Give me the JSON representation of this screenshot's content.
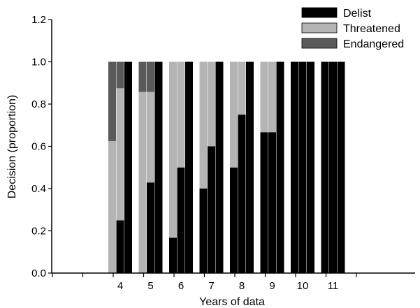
{
  "chart_data": {
    "type": "bar",
    "title": "",
    "xlabel": "Years of data",
    "ylabel": "Decision (proportion)",
    "ylim": [
      0,
      1.2
    ],
    "yticks": [
      "0.0",
      "0.2",
      "0.4",
      "0.6",
      "0.8",
      "1.0",
      "1.2"
    ],
    "categories": [
      "4",
      "5",
      "6",
      "7",
      "8",
      "9",
      "10",
      "11"
    ],
    "legend_position": "top-right",
    "series": [
      {
        "name": "Delist",
        "color": "#000000"
      },
      {
        "name": "Threatened",
        "color": "#b4b4b4"
      },
      {
        "name": "Endangered",
        "color": "#5a5a5a"
      }
    ],
    "groups": [
      {
        "category": "4",
        "bars": [
          {
            "Delist": 0,
            "Threatened": 0.625,
            "Endangered": 0.375
          },
          {
            "Delist": 0.25,
            "Threatened": 0.625,
            "Endangered": 0.125
          },
          {
            "Delist": 1.0,
            "Threatened": 0,
            "Endangered": 0
          }
        ]
      },
      {
        "category": "5",
        "bars": [
          {
            "Delist": 0,
            "Threatened": 0.857,
            "Endangered": 0.143
          },
          {
            "Delist": 0.429,
            "Threatened": 0.428,
            "Endangered": 0.143
          },
          {
            "Delist": 1.0,
            "Threatened": 0,
            "Endangered": 0
          }
        ]
      },
      {
        "category": "6",
        "bars": [
          {
            "Delist": 0.167,
            "Threatened": 0.833,
            "Endangered": 0
          },
          {
            "Delist": 0.5,
            "Threatened": 0.5,
            "Endangered": 0
          },
          {
            "Delist": 1.0,
            "Threatened": 0,
            "Endangered": 0
          }
        ]
      },
      {
        "category": "7",
        "bars": [
          {
            "Delist": 0.4,
            "Threatened": 0.6,
            "Endangered": 0
          },
          {
            "Delist": 0.6,
            "Threatened": 0.4,
            "Endangered": 0
          },
          {
            "Delist": 1.0,
            "Threatened": 0,
            "Endangered": 0
          }
        ]
      },
      {
        "category": "8",
        "bars": [
          {
            "Delist": 0.5,
            "Threatened": 0.5,
            "Endangered": 0
          },
          {
            "Delist": 0.75,
            "Threatened": 0.25,
            "Endangered": 0
          },
          {
            "Delist": 1.0,
            "Threatened": 0,
            "Endangered": 0
          }
        ]
      },
      {
        "category": "9",
        "bars": [
          {
            "Delist": 0.667,
            "Threatened": 0.333,
            "Endangered": 0
          },
          {
            "Delist": 0.667,
            "Threatened": 0.333,
            "Endangered": 0
          },
          {
            "Delist": 1.0,
            "Threatened": 0,
            "Endangered": 0
          }
        ]
      },
      {
        "category": "10",
        "bars": [
          {
            "Delist": 1.0,
            "Threatened": 0,
            "Endangered": 0
          },
          {
            "Delist": 1.0,
            "Threatened": 0,
            "Endangered": 0
          },
          {
            "Delist": 1.0,
            "Threatened": 0,
            "Endangered": 0
          }
        ]
      },
      {
        "category": "11",
        "bars": [
          {
            "Delist": 1.0,
            "Threatened": 0,
            "Endangered": 0
          },
          {
            "Delist": 1.0,
            "Threatened": 0,
            "Endangered": 0
          },
          {
            "Delist": 1.0,
            "Threatened": 0,
            "Endangered": 0
          }
        ]
      }
    ]
  }
}
